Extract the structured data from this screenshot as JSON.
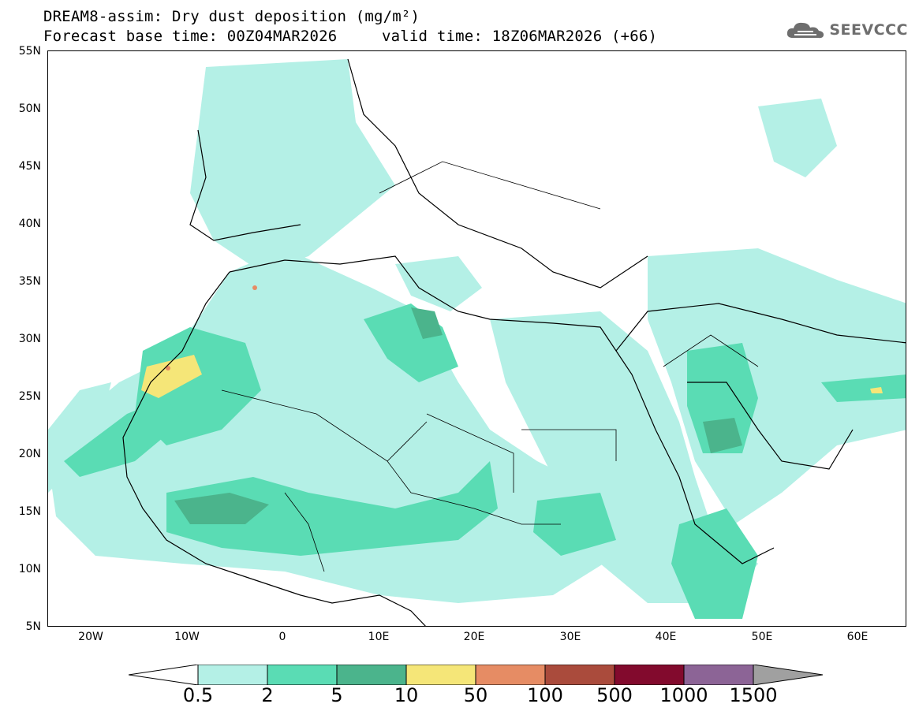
{
  "header": {
    "line1": "DREAM8-assim: Dry dust deposition (mg/m²)",
    "line2_left": "Forecast base time: 00Z04MAR2026",
    "line2_right": "valid time: 18Z06MAR2026 (+66)"
  },
  "logo": {
    "text": "SEEVCCC",
    "icon": "cloud-icon"
  },
  "axes": {
    "lat_labels": [
      "55N",
      "50N",
      "45N",
      "40N",
      "35N",
      "30N",
      "25N",
      "20N",
      "15N",
      "10N",
      "5N"
    ],
    "lon_labels": [
      "20W",
      "10W",
      "0",
      "10E",
      "20E",
      "30E",
      "40E",
      "50E",
      "60E"
    ]
  },
  "colorbar": {
    "labels": [
      "0.5",
      "2",
      "5",
      "10",
      "50",
      "100",
      "500",
      "1000",
      "1500"
    ],
    "colors": [
      "#ffffff",
      "#b4f0e6",
      "#5adcb4",
      "#4bb48c",
      "#f5e678",
      "#e68c64",
      "#aa4b3c",
      "#820a2d",
      "#8c6496",
      "#a0a0a0"
    ]
  }
}
